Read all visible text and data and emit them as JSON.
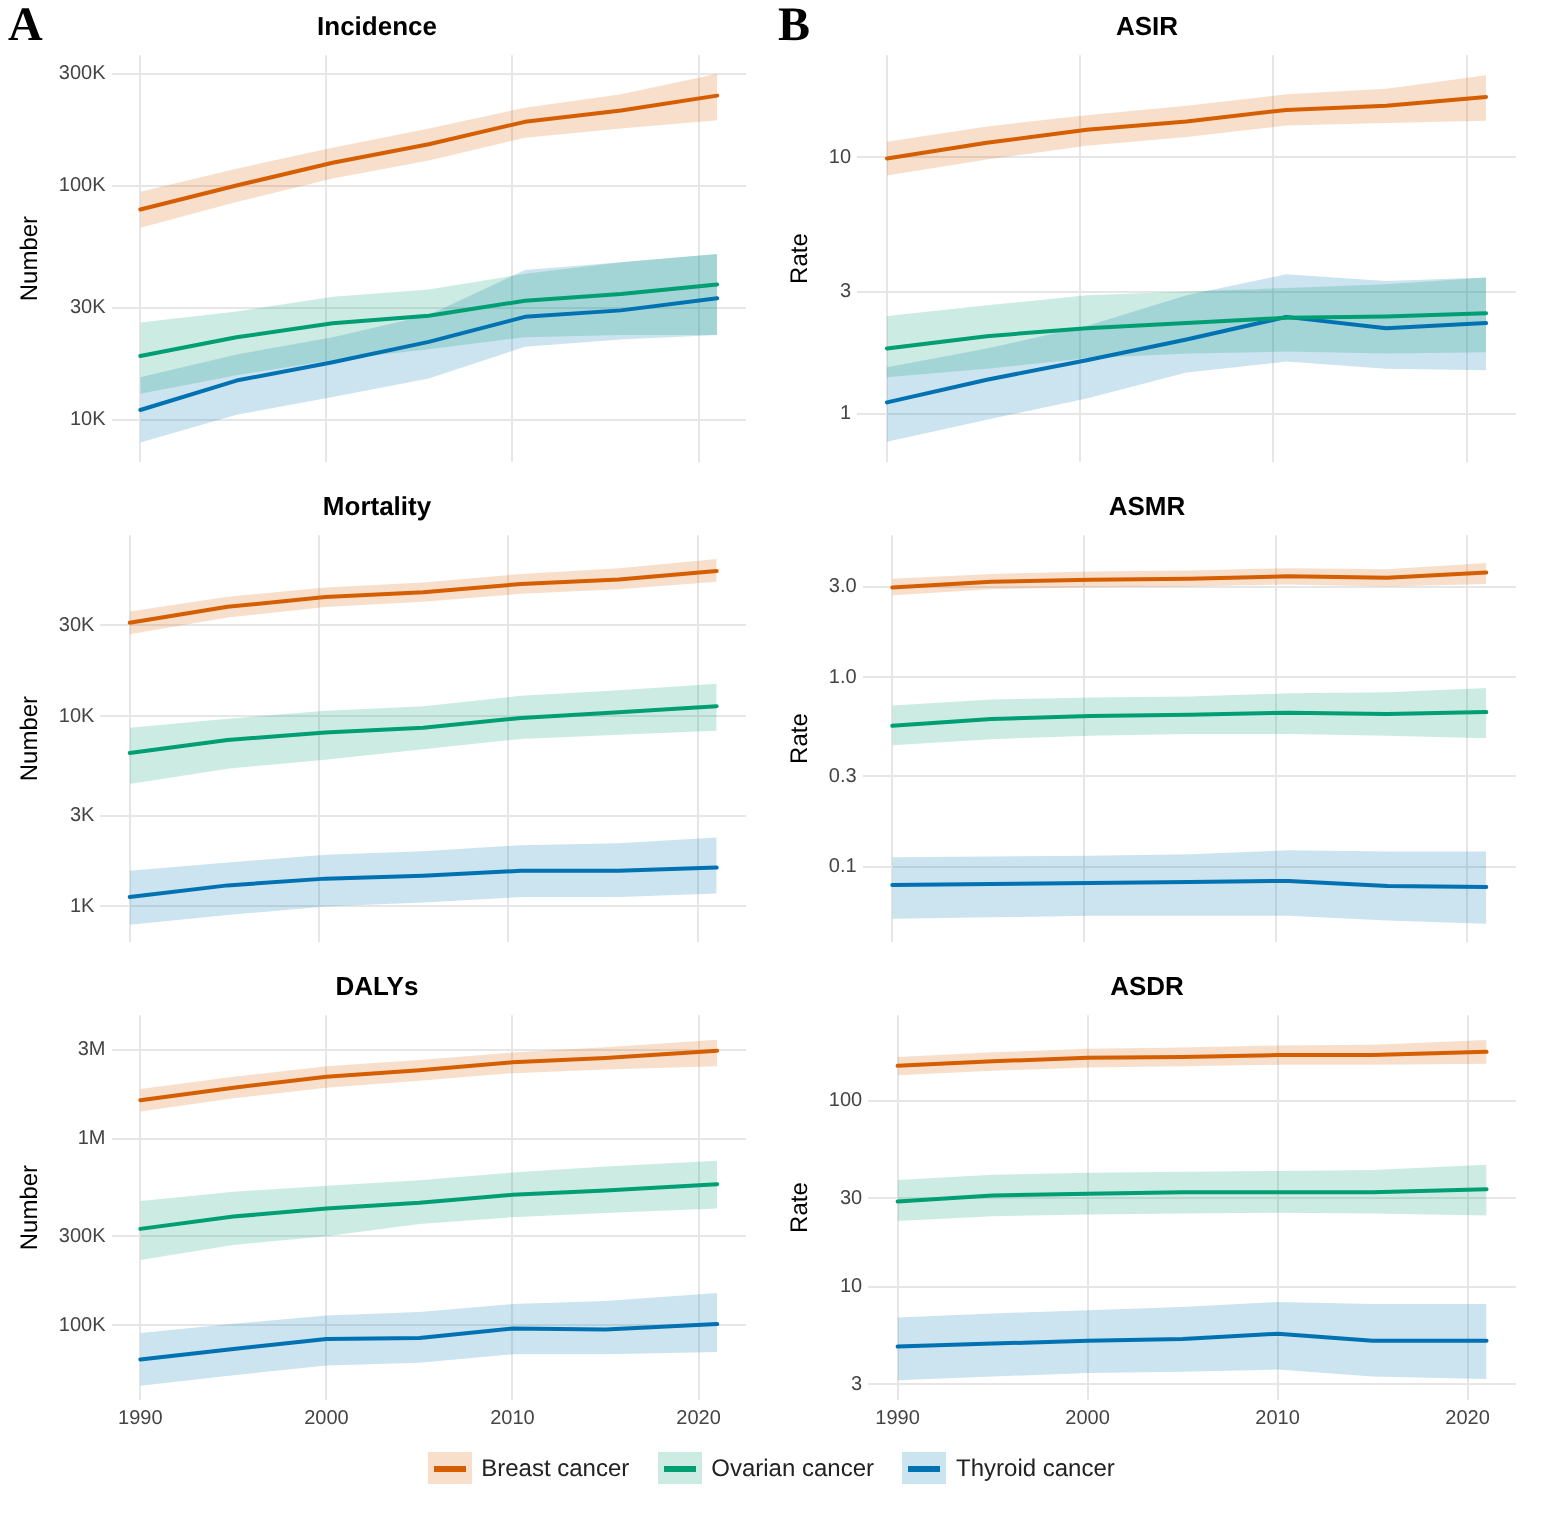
{
  "chart_data": [
    {
      "type": "line",
      "title": "Incidence",
      "ylabel": "Number",
      "annotations": [
        "A"
      ],
      "log": "y",
      "grid": true,
      "tick_labels": "y",
      "marker": "none",
      "line_style": "solid",
      "categories": [
        null,
        null,
        null,
        null,
        null,
        null,
        null
      ],
      "ylim": [
        6600,
        360000
      ],
      "yticks": [
        {
          "value": 10000,
          "label": "10K"
        },
        {
          "value": 30000,
          "label": "30K"
        },
        {
          "value": 100000,
          "label": "100K"
        },
        {
          "value": 300000,
          "label": "300K"
        }
      ],
      "series": [
        {
          "color": "#d55e00",
          "values": [
            79000,
            100000,
            125000,
            150000,
            187000,
            209000,
            242000
          ],
          "lower": [
            66000,
            85000,
            107000,
            128000,
            160000,
            175000,
            190000
          ],
          "upper": [
            94000,
            118000,
            145000,
            175000,
            215000,
            245000,
            300000
          ]
        },
        {
          "color": "#009e73",
          "values": [
            18700,
            22500,
            25800,
            27800,
            32200,
            34400,
            37800
          ],
          "lower": [
            12900,
            15500,
            18000,
            20000,
            22500,
            23000,
            23000
          ],
          "upper": [
            26000,
            29000,
            33500,
            36000,
            42000,
            47000,
            51000
          ]
        },
        {
          "color": "#0072b2",
          "values": [
            11000,
            14700,
            17600,
            21500,
            27500,
            29300,
            33000
          ],
          "lower": [
            8000,
            10500,
            12500,
            15000,
            20500,
            22000,
            23000
          ],
          "upper": [
            15200,
            19000,
            22500,
            28000,
            43600,
            47000,
            51000
          ]
        }
      ]
    },
    {
      "type": "line",
      "title": "ASIR",
      "ylabel": "Rate",
      "annotations": [
        "B"
      ],
      "log": "y",
      "grid": true,
      "tick_labels": "y",
      "marker": "none",
      "line_style": "solid",
      "categories": [
        null,
        null,
        null,
        null,
        null,
        null,
        null
      ],
      "ylim": [
        0.65,
        25
      ],
      "yticks": [
        1,
        3,
        10
      ],
      "series": [
        {
          "color": "#d55e00",
          "values": [
            9.9,
            11.4,
            12.8,
            13.8,
            15.3,
            15.9,
            17.2
          ],
          "lower": [
            8.5,
            9.8,
            11.1,
            12.0,
            13.3,
            13.6,
            13.9
          ],
          "upper": [
            11.5,
            13.2,
            14.6,
            15.9,
            17.6,
            18.5,
            20.9
          ]
        },
        {
          "color": "#009e73",
          "values": [
            1.8,
            2.01,
            2.16,
            2.26,
            2.37,
            2.4,
            2.47
          ],
          "lower": [
            1.39,
            1.5,
            1.65,
            1.72,
            1.75,
            1.72,
            1.74
          ],
          "upper": [
            2.41,
            2.65,
            2.9,
            3.0,
            3.1,
            3.2,
            3.4
          ]
        },
        {
          "color": "#0072b2",
          "values": [
            1.11,
            1.36,
            1.62,
            1.95,
            2.39,
            2.16,
            2.26
          ],
          "lower": [
            0.78,
            0.95,
            1.15,
            1.45,
            1.6,
            1.5,
            1.48
          ],
          "upper": [
            1.52,
            1.8,
            2.2,
            2.9,
            3.5,
            3.3,
            3.4
          ]
        }
      ]
    },
    {
      "type": "line",
      "title": "Mortality",
      "ylabel": "Number",
      "log": "y",
      "grid": true,
      "tick_labels": "y",
      "marker": "none",
      "line_style": "solid",
      "categories": [
        null,
        null,
        null,
        null,
        null,
        null,
        null
      ],
      "ylim": [
        650,
        89500
      ],
      "yticks": [
        {
          "value": 1000,
          "label": "1K"
        },
        {
          "value": 3000,
          "label": "3K"
        },
        {
          "value": 10000,
          "label": "10K"
        },
        {
          "value": 30000,
          "label": "30K"
        }
      ],
      "series": [
        {
          "color": "#d55e00",
          "values": [
            31000,
            37600,
            42300,
            44800,
            49600,
            52400,
            58000
          ],
          "lower": [
            27000,
            33000,
            37500,
            40000,
            44000,
            46500,
            51000
          ],
          "upper": [
            35500,
            42500,
            47500,
            50500,
            56000,
            60000,
            67000
          ]
        },
        {
          "color": "#009e73",
          "values": [
            6400,
            7500,
            8200,
            8700,
            9800,
            10500,
            11300
          ],
          "lower": [
            4400,
            5300,
            5900,
            6700,
            7600,
            8000,
            8400
          ],
          "upper": [
            8700,
            9700,
            10700,
            11300,
            12800,
            13700,
            14800
          ]
        },
        {
          "color": "#0072b2",
          "values": [
            1120,
            1290,
            1400,
            1450,
            1540,
            1540,
            1600
          ],
          "lower": [
            800,
            900,
            1000,
            1050,
            1120,
            1120,
            1170
          ],
          "upper": [
            1540,
            1700,
            1870,
            1950,
            2100,
            2150,
            2300
          ]
        }
      ]
    },
    {
      "type": "line",
      "title": "ASMR",
      "ylabel": "Rate",
      "log": "y",
      "grid": true,
      "tick_labels": "y",
      "marker": "none",
      "line_style": "solid",
      "categories": [
        null,
        null,
        null,
        null,
        null,
        null,
        null
      ],
      "ylim": [
        0.04,
        5.6
      ],
      "yticks": [
        {
          "value": 0.1,
          "label": "0.1"
        },
        {
          "value": 0.3,
          "label": "0.3"
        },
        {
          "value": 1,
          "label": "1.0"
        },
        {
          "value": 3,
          "label": "3.0"
        }
      ],
      "series": [
        {
          "color": "#d55e00",
          "values": [
            2.97,
            3.18,
            3.26,
            3.3,
            3.4,
            3.34,
            3.56
          ],
          "lower": [
            2.7,
            2.9,
            2.98,
            3.0,
            3.08,
            3.0,
            3.1
          ],
          "upper": [
            3.3,
            3.5,
            3.6,
            3.65,
            3.75,
            3.7,
            4.0
          ]
        },
        {
          "color": "#009e73",
          "values": [
            0.553,
            0.6,
            0.623,
            0.633,
            0.648,
            0.638,
            0.653
          ],
          "lower": [
            0.437,
            0.47,
            0.49,
            0.5,
            0.5,
            0.49,
            0.476
          ],
          "upper": [
            0.707,
            0.76,
            0.78,
            0.79,
            0.82,
            0.83,
            0.874
          ]
        },
        {
          "color": "#0072b2",
          "values": [
            0.08,
            0.081,
            0.082,
            0.083,
            0.084,
            0.079,
            0.078
          ],
          "lower": [
            0.053,
            0.054,
            0.055,
            0.055,
            0.055,
            0.052,
            0.05
          ],
          "upper": [
            0.112,
            0.113,
            0.114,
            0.116,
            0.122,
            0.12,
            0.12
          ]
        }
      ]
    },
    {
      "type": "line",
      "title": "DALYs",
      "ylabel": "Number",
      "log": "y",
      "grid": true,
      "legend": "bottom",
      "marker": "none",
      "line_style": "solid",
      "x": [
        1990,
        1995,
        2000,
        2005,
        2010,
        2015,
        2021
      ],
      "xlim": [
        1988.45,
        2022.55
      ],
      "xticks": [
        1990,
        2000,
        2010,
        2020
      ],
      "ylim": [
        39800,
        4600000
      ],
      "yticks": [
        {
          "value": 100000,
          "label": "100K"
        },
        {
          "value": 300000,
          "label": "300K"
        },
        {
          "value": 1000000,
          "label": "1M"
        },
        {
          "value": 3000000,
          "label": "3M"
        }
      ],
      "series": [
        {
          "name": "Breast cancer",
          "color": "#d55e00",
          "values": [
            1610000,
            1880000,
            2150000,
            2330000,
            2570000,
            2710000,
            2970000
          ],
          "lower": [
            1400000,
            1650000,
            1880000,
            2050000,
            2250000,
            2350000,
            2450000
          ],
          "upper": [
            1850000,
            2150000,
            2450000,
            2650000,
            2900000,
            3100000,
            3400000
          ]
        },
        {
          "name": "Ovarian cancer",
          "color": "#009e73",
          "values": [
            329000,
            383000,
            423000,
            454000,
            501000,
            529000,
            571000
          ],
          "lower": [
            224000,
            270000,
            300000,
            350000,
            380000,
            400000,
            423000
          ],
          "upper": [
            464000,
            520000,
            560000,
            600000,
            660000,
            710000,
            764000
          ]
        },
        {
          "name": "Thyroid cancer",
          "color": "#0072b2",
          "values": [
            65600,
            74700,
            84500,
            85600,
            96200,
            95000,
            101600
          ],
          "lower": [
            47500,
            54000,
            61000,
            63000,
            70000,
            70000,
            72000
          ],
          "upper": [
            91000,
            102000,
            113000,
            118000,
            130000,
            135000,
            149000
          ]
        }
      ]
    },
    {
      "type": "line",
      "title": "ASDR",
      "ylabel": "Rate",
      "log": "y",
      "grid": true,
      "marker": "none",
      "line_style": "solid",
      "x": [
        1990,
        1995,
        2000,
        2005,
        2010,
        2015,
        2021
      ],
      "xlim": [
        1988.45,
        2022.55
      ],
      "xticks": [
        1990,
        2000,
        2010,
        2020
      ],
      "ylim": [
        2.47,
        288
      ],
      "yticks": [
        3,
        10,
        30,
        100
      ],
      "series": [
        {
          "color": "#d55e00",
          "values": [
            154,
            163,
            170,
            172,
            176,
            176,
            183
          ],
          "lower": [
            137,
            145,
            151,
            153,
            156,
            156,
            158
          ],
          "upper": [
            172,
            182,
            190,
            193,
            198,
            200,
            212
          ]
        },
        {
          "color": "#009e73",
          "values": [
            28.8,
            31,
            31.7,
            32.2,
            32.2,
            32.2,
            33.5
          ],
          "lower": [
            22.6,
            24,
            24.5,
            24.8,
            25,
            24.8,
            24.2
          ],
          "upper": [
            37.5,
            40,
            41,
            41.5,
            42,
            42.5,
            45.3
          ]
        },
        {
          "color": "#0072b2",
          "values": [
            4.78,
            4.96,
            5.14,
            5.25,
            5.6,
            5.14,
            5.14
          ],
          "lower": [
            3.15,
            3.3,
            3.45,
            3.5,
            3.6,
            3.3,
            3.2
          ],
          "upper": [
            6.85,
            7.2,
            7.5,
            7.8,
            8.3,
            8.1,
            8.1
          ]
        }
      ]
    }
  ]
}
